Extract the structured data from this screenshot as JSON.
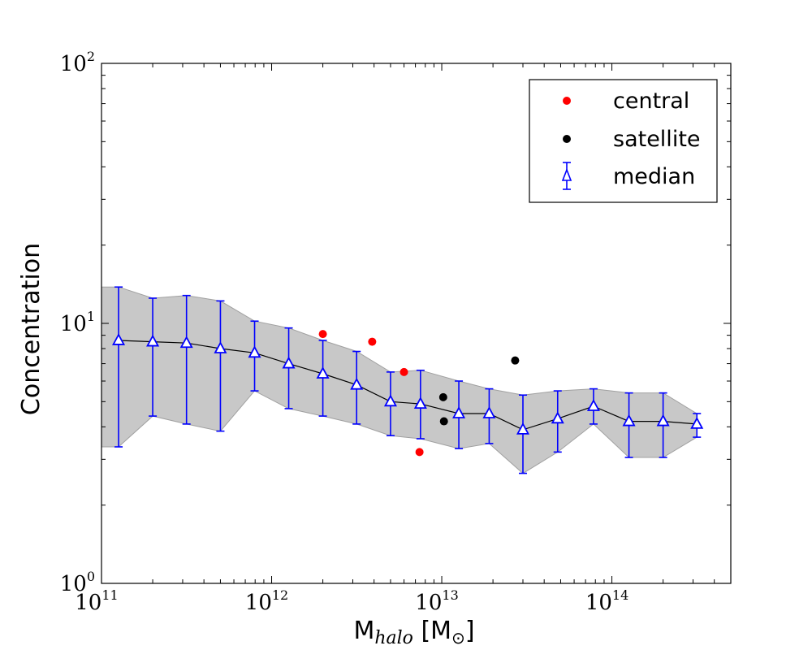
{
  "chart_data": {
    "type": "scatter",
    "xscale": "log",
    "yscale": "log",
    "xlim": [
      100000000000.0,
      500000000000000.0
    ],
    "ylim": [
      1,
      100
    ],
    "xlabel": {
      "main": "M",
      "sub": "halo",
      "units_open": " [M",
      "units_sub": "⊙",
      "units_close": "]"
    },
    "ylabel": "Concentration",
    "x_ticks": [
      {
        "base": "10",
        "exp": "11",
        "value": 100000000000.0
      },
      {
        "base": "10",
        "exp": "12",
        "value": 1000000000000.0
      },
      {
        "base": "10",
        "exp": "13",
        "value": 10000000000000.0
      },
      {
        "base": "10",
        "exp": "14",
        "value": 100000000000000.0
      }
    ],
    "y_ticks": [
      {
        "base": "10",
        "exp": "0",
        "value": 1
      },
      {
        "base": "10",
        "exp": "1",
        "value": 10
      },
      {
        "base": "10",
        "exp": "2",
        "value": 100
      }
    ],
    "legend": {
      "position": "top-right",
      "entries": [
        {
          "label": "central",
          "marker": "dot",
          "color": "#ff0000"
        },
        {
          "label": "satellite",
          "marker": "dot",
          "color": "#000000"
        },
        {
          "label": "median",
          "marker": "triangle-errorbar",
          "color": "#0000ff"
        }
      ]
    },
    "colors": {
      "central": "#ff0000",
      "satellite": "#000000",
      "median": "#0000ff",
      "band_fill": "#c8c8c8",
      "band_edge": "#a0a0a0",
      "line": "#000000"
    },
    "series": [
      {
        "name": "median",
        "x": [
          126000000000.0,
          200000000000.0,
          316000000000.0,
          500000000000.0,
          794000000000.0,
          1260000000000.0,
          2000000000000.0,
          3160000000000.0,
          5000000000000.0,
          7500000000000.0,
          12600000000000.0,
          19000000000000.0,
          30000000000000.0,
          48000000000000.0,
          78000000000000.0,
          126000000000000.0,
          200000000000000.0,
          316000000000000.0
        ],
        "y": [
          8.6,
          8.5,
          8.4,
          8.0,
          7.7,
          7.0,
          6.4,
          5.8,
          5.0,
          4.9,
          4.5,
          4.5,
          3.9,
          4.3,
          4.8,
          4.2,
          4.2,
          4.1
        ],
        "err_lower": [
          3.35,
          4.4,
          4.1,
          3.85,
          5.5,
          4.7,
          4.4,
          4.1,
          3.7,
          3.6,
          3.3,
          3.45,
          2.65,
          3.2,
          4.1,
          3.05,
          3.05,
          3.65
        ],
        "err_upper": [
          13.8,
          12.5,
          12.8,
          12.2,
          10.2,
          9.6,
          8.6,
          7.8,
          6.5,
          6.6,
          6.0,
          5.6,
          5.3,
          5.5,
          5.6,
          5.4,
          5.4,
          4.5
        ]
      },
      {
        "name": "central",
        "x": [
          2000000000000.0,
          3900000000000.0,
          6000000000000.0,
          7400000000000.0
        ],
        "y": [
          9.1,
          8.5,
          6.5,
          3.2
        ]
      },
      {
        "name": "satellite",
        "x": [
          10200000000000.0,
          10300000000000.0,
          27000000000000.0
        ],
        "y": [
          5.2,
          4.2,
          7.2
        ]
      }
    ],
    "band": {
      "x": [
        100000000000.0,
        126000000000.0,
        200000000000.0,
        316000000000.0,
        500000000000.0,
        794000000000.0,
        1260000000000.0,
        2000000000000.0,
        3160000000000.0,
        5000000000000.0,
        7500000000000.0,
        12600000000000.0,
        19000000000000.0,
        30000000000000.0,
        48000000000000.0,
        78000000000000.0,
        126000000000000.0,
        200000000000000.0,
        316000000000000.0
      ],
      "upper": [
        13.8,
        13.8,
        12.5,
        12.8,
        12.2,
        10.2,
        9.6,
        8.6,
        7.8,
        6.5,
        6.6,
        6.0,
        5.6,
        5.3,
        5.5,
        5.6,
        5.4,
        5.4,
        4.5
      ],
      "lower": [
        3.35,
        3.35,
        4.4,
        4.1,
        3.85,
        5.5,
        4.7,
        4.4,
        4.1,
        3.7,
        3.6,
        3.3,
        3.45,
        2.65,
        3.2,
        4.1,
        3.05,
        3.05,
        3.65
      ]
    }
  }
}
